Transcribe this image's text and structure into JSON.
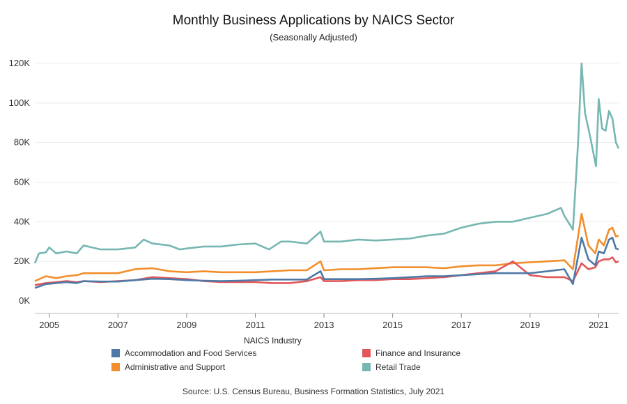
{
  "chart_data": {
    "type": "line",
    "title": "Monthly Business Applications by NAICS Sector",
    "subtitle": "(Seasonally Adjusted)",
    "xlabel": "",
    "ylabel": "",
    "x_range": [
      2004.58,
      2021.58
    ],
    "ylim": [
      0,
      120000
    ],
    "y_ticks": [
      0,
      20000,
      40000,
      60000,
      80000,
      100000,
      120000
    ],
    "y_tick_labels": [
      "0K",
      "20K",
      "40K",
      "60K",
      "80K",
      "100K",
      "120K"
    ],
    "x_ticks": [
      2005,
      2007,
      2009,
      2011,
      2013,
      2015,
      2017,
      2019,
      2021
    ],
    "x_tick_labels": [
      "2005",
      "2007",
      "2009",
      "2011",
      "2013",
      "2015",
      "2017",
      "2019",
      "2021"
    ],
    "grid": "horizontal",
    "legend_title": "NAICS Industry",
    "legend_placement": "bottom",
    "source": "Source: U.S. Census Bureau, Business Formation Statistics, July 2021",
    "series": [
      {
        "name": "Accommodation and Food Services",
        "color": "#4e79a7",
        "points": [
          [
            2004.58,
            6500
          ],
          [
            2004.9,
            8500
          ],
          [
            2005.2,
            9000
          ],
          [
            2005.5,
            9500
          ],
          [
            2005.8,
            9000
          ],
          [
            2006.0,
            10000
          ],
          [
            2006.5,
            9800
          ],
          [
            2007.0,
            9800
          ],
          [
            2007.5,
            10500
          ],
          [
            2008.0,
            11200
          ],
          [
            2008.5,
            11000
          ],
          [
            2009.0,
            10500
          ],
          [
            2009.5,
            10200
          ],
          [
            2010.0,
            10000
          ],
          [
            2010.5,
            10200
          ],
          [
            2011.0,
            10500
          ],
          [
            2011.5,
            10800
          ],
          [
            2012.0,
            10800
          ],
          [
            2012.5,
            10800
          ],
          [
            2012.9,
            15000
          ],
          [
            2013.0,
            11000
          ],
          [
            2013.5,
            11000
          ],
          [
            2014.0,
            11000
          ],
          [
            2014.5,
            11200
          ],
          [
            2015.0,
            11500
          ],
          [
            2015.5,
            12000
          ],
          [
            2016.0,
            12500
          ],
          [
            2016.5,
            12500
          ],
          [
            2017.0,
            13000
          ],
          [
            2017.5,
            13500
          ],
          [
            2018.0,
            14000
          ],
          [
            2018.5,
            14000
          ],
          [
            2019.0,
            14000
          ],
          [
            2019.5,
            15000
          ],
          [
            2020.0,
            16000
          ],
          [
            2020.25,
            8500
          ],
          [
            2020.5,
            32000
          ],
          [
            2020.7,
            21000
          ],
          [
            2020.9,
            18000
          ],
          [
            2021.0,
            25000
          ],
          [
            2021.15,
            24000
          ],
          [
            2021.3,
            31000
          ],
          [
            2021.4,
            32000
          ],
          [
            2021.5,
            26500
          ],
          [
            2021.58,
            26000
          ]
        ]
      },
      {
        "name": "Administrative and Support",
        "color": "#f28e2b",
        "points": [
          [
            2004.58,
            10000
          ],
          [
            2004.9,
            12500
          ],
          [
            2005.2,
            11500
          ],
          [
            2005.5,
            12500
          ],
          [
            2005.8,
            13000
          ],
          [
            2006.0,
            14000
          ],
          [
            2006.5,
            14000
          ],
          [
            2007.0,
            14000
          ],
          [
            2007.5,
            16000
          ],
          [
            2008.0,
            16500
          ],
          [
            2008.5,
            15000
          ],
          [
            2009.0,
            14500
          ],
          [
            2009.5,
            15000
          ],
          [
            2010.0,
            14500
          ],
          [
            2010.5,
            14500
          ],
          [
            2011.0,
            14500
          ],
          [
            2011.5,
            15000
          ],
          [
            2012.0,
            15500
          ],
          [
            2012.5,
            15500
          ],
          [
            2012.9,
            20000
          ],
          [
            2013.0,
            15500
          ],
          [
            2013.5,
            16000
          ],
          [
            2014.0,
            16000
          ],
          [
            2014.5,
            16500
          ],
          [
            2015.0,
            17000
          ],
          [
            2015.5,
            17000
          ],
          [
            2016.0,
            17000
          ],
          [
            2016.5,
            16500
          ],
          [
            2017.0,
            17500
          ],
          [
            2017.5,
            18000
          ],
          [
            2018.0,
            18000
          ],
          [
            2018.5,
            19000
          ],
          [
            2019.0,
            19500
          ],
          [
            2019.5,
            20000
          ],
          [
            2020.0,
            20500
          ],
          [
            2020.25,
            16000
          ],
          [
            2020.5,
            44000
          ],
          [
            2020.7,
            28000
          ],
          [
            2020.9,
            24000
          ],
          [
            2021.0,
            31000
          ],
          [
            2021.15,
            28000
          ],
          [
            2021.3,
            36000
          ],
          [
            2021.4,
            37000
          ],
          [
            2021.5,
            32500
          ],
          [
            2021.58,
            33000
          ]
        ]
      },
      {
        "name": "Finance and Insurance",
        "color": "#e15759",
        "points": [
          [
            2004.58,
            8000
          ],
          [
            2004.9,
            9000
          ],
          [
            2005.2,
            9500
          ],
          [
            2005.5,
            10000
          ],
          [
            2005.8,
            9500
          ],
          [
            2006.0,
            10000
          ],
          [
            2006.5,
            9500
          ],
          [
            2007.0,
            10000
          ],
          [
            2007.5,
            10500
          ],
          [
            2008.0,
            12000
          ],
          [
            2008.5,
            11500
          ],
          [
            2009.0,
            11000
          ],
          [
            2009.5,
            10000
          ],
          [
            2010.0,
            9500
          ],
          [
            2010.5,
            9500
          ],
          [
            2011.0,
            9500
          ],
          [
            2011.5,
            9000
          ],
          [
            2012.0,
            9000
          ],
          [
            2012.5,
            10000
          ],
          [
            2012.9,
            12000
          ],
          [
            2013.0,
            10000
          ],
          [
            2013.5,
            10000
          ],
          [
            2014.0,
            10500
          ],
          [
            2014.5,
            10500
          ],
          [
            2015.0,
            11000
          ],
          [
            2015.5,
            11000
          ],
          [
            2016.0,
            11500
          ],
          [
            2016.5,
            12000
          ],
          [
            2017.0,
            13000
          ],
          [
            2017.5,
            14000
          ],
          [
            2018.0,
            15000
          ],
          [
            2018.5,
            20000
          ],
          [
            2019.0,
            13000
          ],
          [
            2019.5,
            12000
          ],
          [
            2020.0,
            12000
          ],
          [
            2020.25,
            10000
          ],
          [
            2020.5,
            19000
          ],
          [
            2020.7,
            16000
          ],
          [
            2020.9,
            17000
          ],
          [
            2021.0,
            20000
          ],
          [
            2021.15,
            21000
          ],
          [
            2021.3,
            21000
          ],
          [
            2021.4,
            22000
          ],
          [
            2021.5,
            19500
          ],
          [
            2021.58,
            20000
          ]
        ]
      },
      {
        "name": "Retail Trade",
        "color": "#76b7b2",
        "points": [
          [
            2004.58,
            19000
          ],
          [
            2004.7,
            24000
          ],
          [
            2004.9,
            24500
          ],
          [
            2005.0,
            27000
          ],
          [
            2005.2,
            24000
          ],
          [
            2005.5,
            25000
          ],
          [
            2005.8,
            24000
          ],
          [
            2006.0,
            28000
          ],
          [
            2006.5,
            26000
          ],
          [
            2007.0,
            26000
          ],
          [
            2007.5,
            27000
          ],
          [
            2007.75,
            31000
          ],
          [
            2008.0,
            29000
          ],
          [
            2008.5,
            28000
          ],
          [
            2008.8,
            26000
          ],
          [
            2009.0,
            26500
          ],
          [
            2009.5,
            27500
          ],
          [
            2010.0,
            27500
          ],
          [
            2010.5,
            28500
          ],
          [
            2011.0,
            29000
          ],
          [
            2011.4,
            26000
          ],
          [
            2011.75,
            30000
          ],
          [
            2012.0,
            30000
          ],
          [
            2012.5,
            29000
          ],
          [
            2012.9,
            35000
          ],
          [
            2013.0,
            30000
          ],
          [
            2013.5,
            30000
          ],
          [
            2014.0,
            31000
          ],
          [
            2014.5,
            30500
          ],
          [
            2015.0,
            31000
          ],
          [
            2015.5,
            31500
          ],
          [
            2016.0,
            33000
          ],
          [
            2016.5,
            34000
          ],
          [
            2017.0,
            37000
          ],
          [
            2017.5,
            39000
          ],
          [
            2018.0,
            40000
          ],
          [
            2018.5,
            40000
          ],
          [
            2019.0,
            42000
          ],
          [
            2019.5,
            44000
          ],
          [
            2019.9,
            47000
          ],
          [
            2020.0,
            43000
          ],
          [
            2020.25,
            36000
          ],
          [
            2020.4,
            80000
          ],
          [
            2020.5,
            120000
          ],
          [
            2020.6,
            95000
          ],
          [
            2020.75,
            83000
          ],
          [
            2020.92,
            68000
          ],
          [
            2021.0,
            102000
          ],
          [
            2021.1,
            87000
          ],
          [
            2021.2,
            86000
          ],
          [
            2021.3,
            96000
          ],
          [
            2021.4,
            92000
          ],
          [
            2021.5,
            80000
          ],
          [
            2021.58,
            77000
          ]
        ]
      }
    ]
  }
}
